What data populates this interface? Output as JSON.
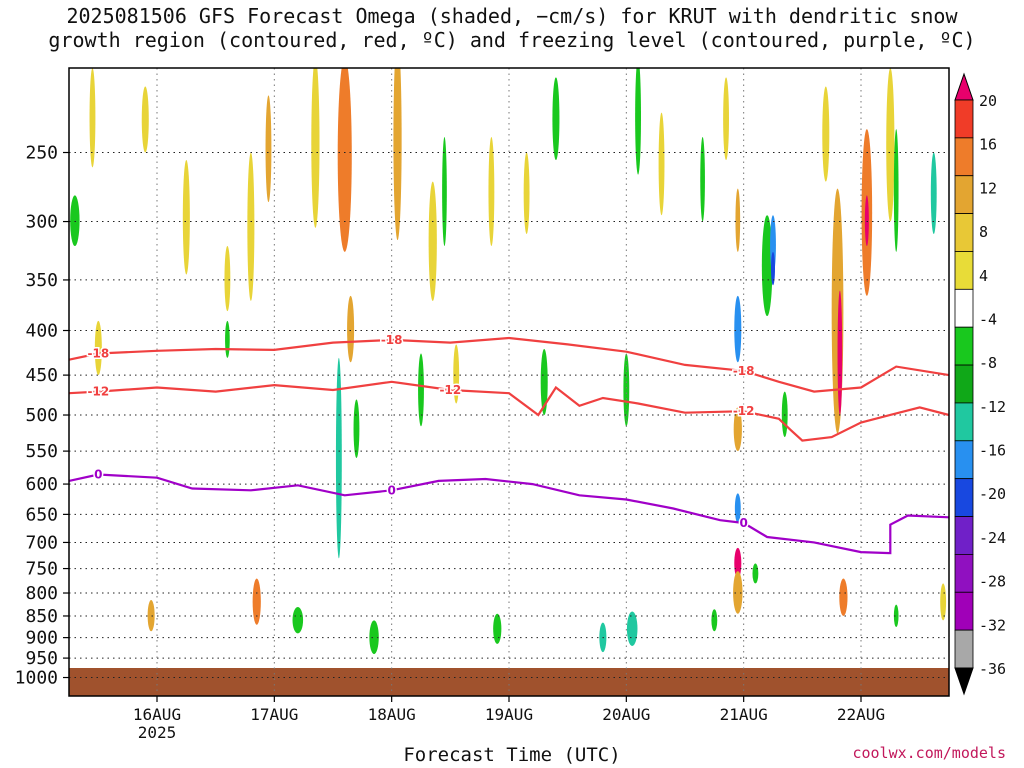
{
  "chart_data": {
    "type": "heatmap",
    "title_line1": "2025081506 GFS Forecast Omega (shaded, −cm/s) for KRUT with dendritic snow",
    "title_line2": "growth region (contoured, red, ºC) and freezing level (contoured, purple, ºC)",
    "xlabel": "Forecast Time (UTC)",
    "credit": "coolwx.com/models",
    "x_ticks": [
      "16AUG",
      "17AUG",
      "18AUG",
      "19AUG",
      "20AUG",
      "21AUG",
      "22AUG"
    ],
    "x_sublabel": "2025",
    "x_range_days": [
      15.25,
      22.75
    ],
    "y_ticks": [
      250,
      300,
      350,
      400,
      450,
      500,
      550,
      600,
      650,
      700,
      750,
      800,
      850,
      900,
      950,
      1000
    ],
    "y_scale": "log-pressure",
    "y_range_hpa": [
      200,
      1050
    ],
    "grid": true,
    "colorbar": {
      "labels": [
        "20",
        "16",
        "12",
        "8",
        "4",
        "-4",
        "-8",
        "-12",
        "-16",
        "-20",
        "-24",
        "-28",
        "-32",
        "-36"
      ],
      "colors": [
        "#e8006c",
        "#f03c28",
        "#ee7c2a",
        "#e3a531",
        "#e8c836",
        "#e8dc38",
        "#ffffff",
        "#19c81e",
        "#10a818",
        "#20c8a0",
        "#2890f0",
        "#1848e0",
        "#7020c8",
        "#9010c0",
        "#a000b8",
        "#a8a8a8",
        "#000000"
      ]
    },
    "ground_color": "#a0522d",
    "contours": {
      "dgz_minus18": {
        "label": "-18",
        "color": "#f04040",
        "points": [
          [
            15.25,
            432
          ],
          [
            15.5,
            425
          ],
          [
            16.0,
            422
          ],
          [
            16.5,
            420
          ],
          [
            17.0,
            421
          ],
          [
            17.5,
            413
          ],
          [
            18.0,
            410
          ],
          [
            18.5,
            413
          ],
          [
            19.0,
            408
          ],
          [
            19.5,
            415
          ],
          [
            20.0,
            423
          ],
          [
            20.5,
            438
          ],
          [
            21.0,
            445
          ],
          [
            21.3,
            458
          ],
          [
            21.6,
            470
          ],
          [
            22.0,
            465
          ],
          [
            22.3,
            440
          ],
          [
            22.75,
            450
          ]
        ]
      },
      "dgz_minus12": {
        "label": "-12",
        "color": "#f04040",
        "points": [
          [
            15.25,
            472
          ],
          [
            15.5,
            470
          ],
          [
            16.0,
            465
          ],
          [
            16.5,
            470
          ],
          [
            17.0,
            462
          ],
          [
            17.5,
            468
          ],
          [
            18.0,
            458
          ],
          [
            18.5,
            468
          ],
          [
            19.0,
            472
          ],
          [
            19.25,
            500
          ],
          [
            19.4,
            465
          ],
          [
            19.6,
            488
          ],
          [
            19.8,
            478
          ],
          [
            20.1,
            485
          ],
          [
            20.5,
            497
          ],
          [
            21.0,
            495
          ],
          [
            21.3,
            505
          ],
          [
            21.4,
            520
          ],
          [
            21.5,
            535
          ],
          [
            21.75,
            530
          ],
          [
            22.0,
            510
          ],
          [
            22.5,
            490
          ],
          [
            22.75,
            500
          ]
        ]
      },
      "freezing_level": {
        "label": "0",
        "color": "#a000c8",
        "points": [
          [
            15.25,
            595
          ],
          [
            15.5,
            585
          ],
          [
            16.0,
            590
          ],
          [
            16.3,
            607
          ],
          [
            16.8,
            610
          ],
          [
            17.2,
            602
          ],
          [
            17.6,
            618
          ],
          [
            18.0,
            610
          ],
          [
            18.4,
            595
          ],
          [
            18.8,
            592
          ],
          [
            19.2,
            600
          ],
          [
            19.6,
            618
          ],
          [
            20.0,
            625
          ],
          [
            20.4,
            640
          ],
          [
            20.8,
            660
          ],
          [
            21.0,
            665
          ],
          [
            21.2,
            690
          ],
          [
            21.6,
            700
          ],
          [
            22.0,
            718
          ],
          [
            22.25,
            720
          ],
          [
            22.25,
            668
          ],
          [
            22.4,
            652
          ],
          [
            22.75,
            655
          ]
        ]
      }
    },
    "omega_blobs": [
      {
        "x": 15.3,
        "p": 300,
        "w": 0.08,
        "h": 40,
        "v": -8
      },
      {
        "x": 15.45,
        "p": 230,
        "w": 0.05,
        "h": 60,
        "v": 4
      },
      {
        "x": 15.5,
        "p": 420,
        "w": 0.06,
        "h": 60,
        "v": 4
      },
      {
        "x": 15.9,
        "p": 230,
        "w": 0.06,
        "h": 40,
        "v": 4
      },
      {
        "x": 15.95,
        "p": 850,
        "w": 0.06,
        "h": 70,
        "v": 8
      },
      {
        "x": 16.25,
        "p": 300,
        "w": 0.06,
        "h": 90,
        "v": 4
      },
      {
        "x": 16.6,
        "p": 350,
        "w": 0.05,
        "h": 60,
        "v": 4
      },
      {
        "x": 16.6,
        "p": 410,
        "w": 0.04,
        "h": 40,
        "v": -8
      },
      {
        "x": 16.8,
        "p": 310,
        "w": 0.06,
        "h": 120,
        "v": 4
      },
      {
        "x": 16.85,
        "p": 820,
        "w": 0.07,
        "h": 100,
        "v": 12
      },
      {
        "x": 16.95,
        "p": 250,
        "w": 0.05,
        "h": 70,
        "v": 8
      },
      {
        "x": 17.2,
        "p": 860,
        "w": 0.09,
        "h": 60,
        "v": -8
      },
      {
        "x": 17.35,
        "p": 250,
        "w": 0.07,
        "h": 110,
        "v": 4
      },
      {
        "x": 17.6,
        "p": 260,
        "w": 0.12,
        "h": 130,
        "v": 12
      },
      {
        "x": 17.65,
        "p": 400,
        "w": 0.06,
        "h": 70,
        "v": 8
      },
      {
        "x": 17.55,
        "p": 580,
        "w": 0.05,
        "h": 300,
        "v": -12
      },
      {
        "x": 17.7,
        "p": 520,
        "w": 0.05,
        "h": 80,
        "v": -8
      },
      {
        "x": 17.85,
        "p": 900,
        "w": 0.08,
        "h": 80,
        "v": -8
      },
      {
        "x": 18.05,
        "p": 250,
        "w": 0.07,
        "h": 130,
        "v": 8
      },
      {
        "x": 18.25,
        "p": 470,
        "w": 0.05,
        "h": 90,
        "v": -8
      },
      {
        "x": 18.35,
        "p": 320,
        "w": 0.07,
        "h": 100,
        "v": 4
      },
      {
        "x": 18.45,
        "p": 280,
        "w": 0.04,
        "h": 80,
        "v": -8
      },
      {
        "x": 18.55,
        "p": 450,
        "w": 0.05,
        "h": 70,
        "v": 4
      },
      {
        "x": 18.85,
        "p": 280,
        "w": 0.05,
        "h": 80,
        "v": 4
      },
      {
        "x": 18.9,
        "p": 880,
        "w": 0.07,
        "h": 70,
        "v": -8
      },
      {
        "x": 19.15,
        "p": 280,
        "w": 0.05,
        "h": 60,
        "v": 4
      },
      {
        "x": 19.3,
        "p": 460,
        "w": 0.06,
        "h": 80,
        "v": -8
      },
      {
        "x": 19.4,
        "p": 230,
        "w": 0.06,
        "h": 50,
        "v": -8
      },
      {
        "x": 19.8,
        "p": 900,
        "w": 0.06,
        "h": 70,
        "v": -12
      },
      {
        "x": 20.05,
        "p": 880,
        "w": 0.09,
        "h": 80,
        "v": -12
      },
      {
        "x": 20.0,
        "p": 470,
        "w": 0.05,
        "h": 90,
        "v": -8
      },
      {
        "x": 20.1,
        "p": 230,
        "w": 0.05,
        "h": 70,
        "v": -8
      },
      {
        "x": 20.3,
        "p": 260,
        "w": 0.05,
        "h": 70,
        "v": 4
      },
      {
        "x": 20.65,
        "p": 270,
        "w": 0.04,
        "h": 60,
        "v": -8
      },
      {
        "x": 20.75,
        "p": 860,
        "w": 0.05,
        "h": 50,
        "v": -8
      },
      {
        "x": 20.85,
        "p": 230,
        "w": 0.05,
        "h": 50,
        "v": 4
      },
      {
        "x": 20.95,
        "p": 300,
        "w": 0.04,
        "h": 50,
        "v": 8
      },
      {
        "x": 20.95,
        "p": 400,
        "w": 0.06,
        "h": 70,
        "v": -16
      },
      {
        "x": 20.95,
        "p": 520,
        "w": 0.07,
        "h": 60,
        "v": 8
      },
      {
        "x": 20.95,
        "p": 640,
        "w": 0.05,
        "h": 50,
        "v": -16
      },
      {
        "x": 20.95,
        "p": 740,
        "w": 0.06,
        "h": 60,
        "v": 20
      },
      {
        "x": 20.95,
        "p": 800,
        "w": 0.08,
        "h": 90,
        "v": 8
      },
      {
        "x": 21.2,
        "p": 340,
        "w": 0.09,
        "h": 90,
        "v": -8
      },
      {
        "x": 21.25,
        "p": 320,
        "w": 0.05,
        "h": 50,
        "v": -16
      },
      {
        "x": 21.25,
        "p": 340,
        "w": 0.03,
        "h": 30,
        "v": -20
      },
      {
        "x": 21.35,
        "p": 500,
        "w": 0.05,
        "h": 60,
        "v": -8
      },
      {
        "x": 21.1,
        "p": 760,
        "w": 0.05,
        "h": 40,
        "v": -8
      },
      {
        "x": 21.7,
        "p": 240,
        "w": 0.06,
        "h": 60,
        "v": 4
      },
      {
        "x": 21.8,
        "p": 400,
        "w": 0.1,
        "h": 250,
        "v": 8
      },
      {
        "x": 21.82,
        "p": 430,
        "w": 0.04,
        "h": 140,
        "v": 20
      },
      {
        "x": 21.85,
        "p": 810,
        "w": 0.07,
        "h": 80,
        "v": 12
      },
      {
        "x": 22.05,
        "p": 300,
        "w": 0.09,
        "h": 130,
        "v": 12
      },
      {
        "x": 22.05,
        "p": 300,
        "w": 0.03,
        "h": 40,
        "v": 20
      },
      {
        "x": 22.25,
        "p": 250,
        "w": 0.07,
        "h": 100,
        "v": 4
      },
      {
        "x": 22.3,
        "p": 280,
        "w": 0.04,
        "h": 90,
        "v": -8
      },
      {
        "x": 22.3,
        "p": 850,
        "w": 0.04,
        "h": 50,
        "v": -8
      },
      {
        "x": 22.62,
        "p": 280,
        "w": 0.05,
        "h": 60,
        "v": -12
      },
      {
        "x": 22.7,
        "p": 820,
        "w": 0.05,
        "h": 80,
        "v": 4
      }
    ]
  }
}
